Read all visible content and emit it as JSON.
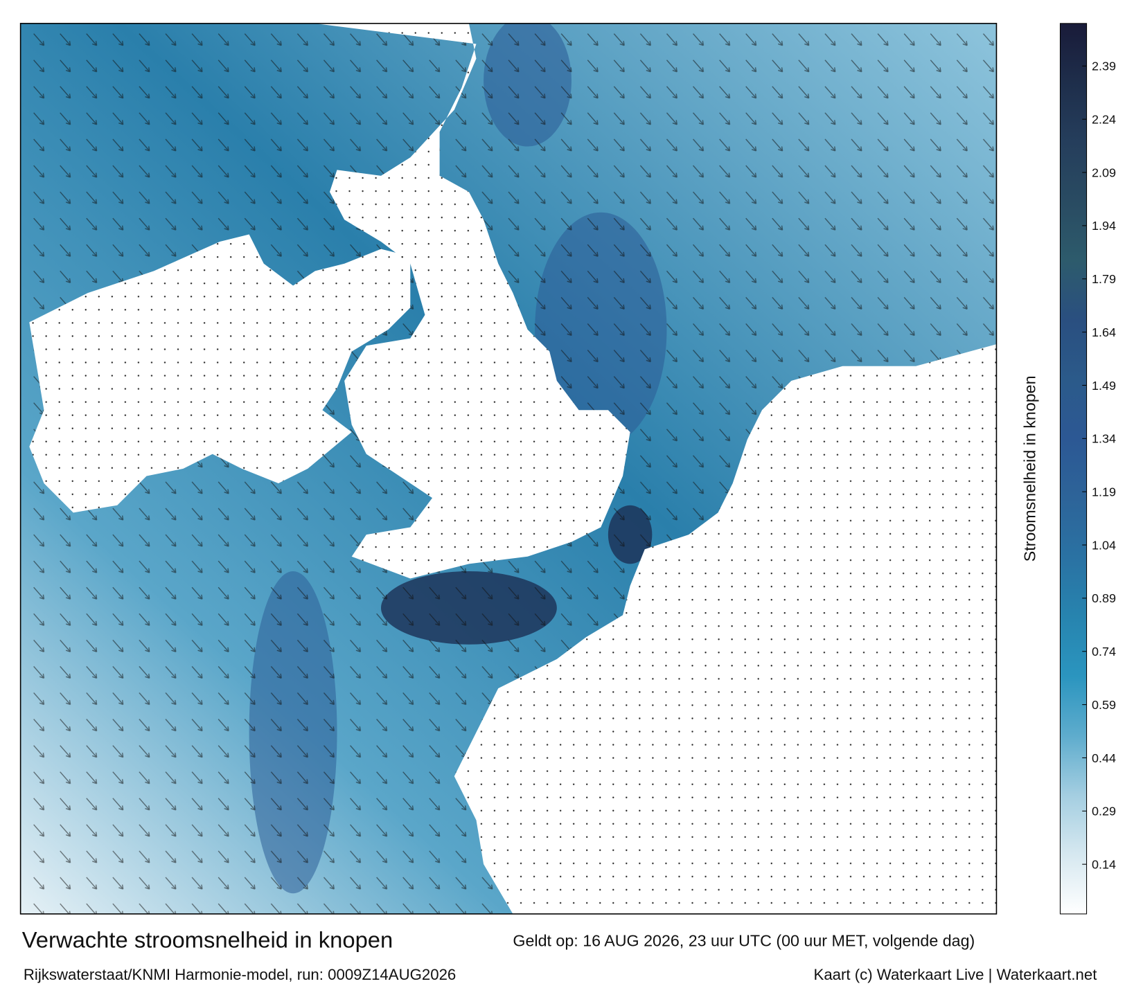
{
  "map": {
    "title": "Verwachte stroomsnelheid in knopen",
    "valid_time": "Geldt op: 16 AUG 2026, 23 uur UTC (00 uur MET, volgende dag)",
    "model_run": "Rijkswaterstaat/KNMI Harmonie-model, run: 0009Z14AUG2026",
    "credit": "Kaart (c) Waterkaart Live | Waterkaart.net",
    "colorbar": {
      "label": "Stroomsnelheid in knopen",
      "lim": [
        0,
        2.51
      ],
      "ticks": [
        0.14,
        0.29,
        0.44,
        0.59,
        0.74,
        0.89,
        1.04,
        1.19,
        1.34,
        1.49,
        1.64,
        1.79,
        1.94,
        2.09,
        2.24,
        2.39
      ],
      "colors": [
        "#ffffff",
        "#d6e8f0",
        "#a4cee1",
        "#5eaccd",
        "#2b95bf",
        "#2784af",
        "#2a72a3",
        "#2d6499",
        "#2c5894",
        "#2b5a8a",
        "#2a4f80",
        "#2d5b6c",
        "#294b62",
        "#253e5c",
        "#1e2e4b",
        "#191b39"
      ]
    }
  }
}
